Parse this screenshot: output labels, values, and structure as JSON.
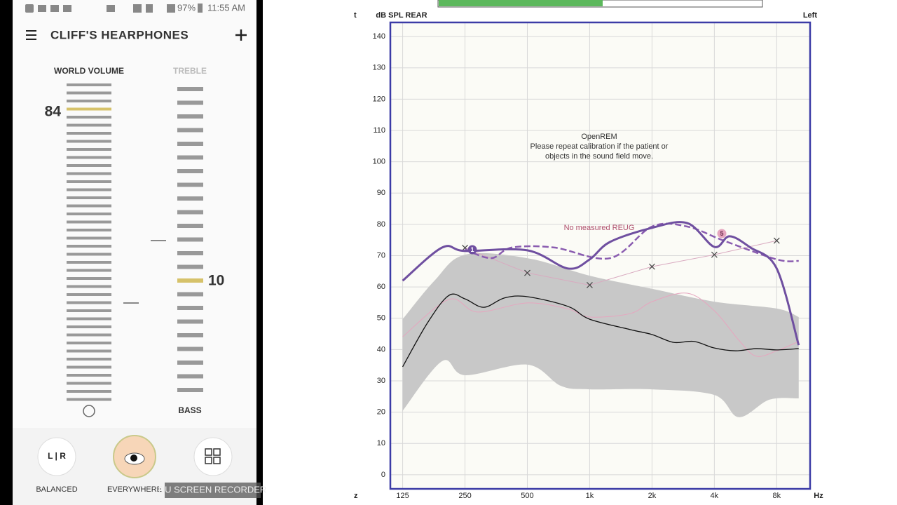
{
  "app": {
    "status": {
      "battery": "97%",
      "time": "11:55 AM"
    },
    "header": {
      "title": "CLIFF'S HEARPHONES"
    },
    "left_slider": {
      "label": "WORLD VOLUME",
      "value": "84"
    },
    "right_slider": {
      "top_label": "TREBLE",
      "bottom_label": "BASS",
      "value": "10"
    },
    "buttons": [
      {
        "label": "BALANCED"
      },
      {
        "label": "EVERYWHERE"
      }
    ],
    "watermark": "DU SCREEN RECORDER"
  },
  "chart_data": {
    "type": "line",
    "y_label": "dB SPL REAR",
    "ear": "Left",
    "x_label": "Hz",
    "clipped_labels": [
      "t",
      "z"
    ],
    "annotations": [
      {
        "text": "OpenREM"
      },
      {
        "text": "Please repeat calibration if the patient or"
      },
      {
        "text": "objects in the sound field move."
      },
      {
        "text": "No measured REUG"
      }
    ],
    "point_labels": [
      "1",
      "5"
    ],
    "xscale": "log",
    "xlim": [
      109,
      11600
    ],
    "ylim": [
      -4.5,
      144.5
    ],
    "xticks": [
      125,
      250,
      500,
      {
        "value": 1000,
        "label": "1k"
      },
      {
        "value": 2000,
        "label": "2k"
      },
      {
        "value": 4000,
        "label": "4k"
      },
      {
        "value": 8000,
        "label": "8k"
      }
    ],
    "yticks": [
      0,
      10,
      20,
      30,
      40,
      50,
      60,
      70,
      80,
      90,
      100,
      110,
      120,
      130,
      140
    ],
    "grid": true,
    "series": [
      {
        "type": "area",
        "color": "#c8c8c8",
        "x": [
          125,
          178,
          250,
          500,
          1000,
          2000,
          4000,
          8000,
          10220
        ],
        "upper": [
          49.7,
          62,
          70.3,
          69.2,
          63.6,
          59.4,
          55.3,
          53.1,
          50.4
        ],
        "x_lower": [
          125,
          194,
          250,
          500,
          726,
          1000,
          2000,
          4000,
          5250,
          7380,
          10220
        ],
        "lower": [
          20.4,
          36.3,
          31.8,
          35.2,
          28.4,
          27.3,
          27.3,
          25.5,
          18.4,
          24,
          24.4
        ]
      },
      {
        "type": "line",
        "color": "#e6a6bf",
        "width": 1,
        "x": [
          125,
          209,
          287,
          500,
          785,
          1000,
          1570,
          2000,
          2960,
          4000,
          5250,
          6360,
          8000,
          10220
        ],
        "values": [
          44.1,
          56,
          52,
          54.9,
          53,
          50.4,
          51.5,
          55.3,
          58,
          52.4,
          43,
          37.9,
          39.6,
          42.6
        ]
      },
      {
        "type": "line",
        "color": "#111111",
        "width": 1.3,
        "x": [
          125,
          165,
          209,
          250,
          308,
          388,
          500,
          785,
          1000,
          1570,
          2000,
          2540,
          3190,
          4000,
          5060,
          6360,
          8000,
          10220
        ],
        "values": [
          34.5,
          48.6,
          57.3,
          56.2,
          53.5,
          56.5,
          56.9,
          53.8,
          49.7,
          46.4,
          44.8,
          42.3,
          42.6,
          40.5,
          39.6,
          40.3,
          39.9,
          40.3
        ]
      },
      {
        "type": "line",
        "color": "#d9aac0",
        "width": 1,
        "marker": "x",
        "straight": true,
        "x": [
          250,
          500,
          1000,
          2000,
          4000,
          8000
        ],
        "values": [
          72.5,
          64.5,
          60.6,
          66.5,
          70.3,
          74.8
        ]
      },
      {
        "type": "line",
        "color": "#8a5cb0",
        "width": 2.5,
        "dashed": true,
        "x": [
          250,
          334,
          421,
          674,
          1255,
          2000,
          2960,
          4440,
          8000,
          10220
        ],
        "values": [
          72,
          69.2,
          72.6,
          72.6,
          69.2,
          79.3,
          79.3,
          74.8,
          68.8,
          68.3
        ]
      },
      {
        "type": "line",
        "color": "#6f4fa0",
        "width": 3,
        "x": [
          125,
          194,
          250,
          500,
          785,
          1000,
          1255,
          2000,
          2960,
          4000,
          4740,
          5970,
          8000,
          10220
        ],
        "values": [
          62,
          72.6,
          71.5,
          71.7,
          65.9,
          68.8,
          74.4,
          78.9,
          80.4,
          72.8,
          76.2,
          72.6,
          65.9,
          41.4
        ]
      }
    ]
  }
}
